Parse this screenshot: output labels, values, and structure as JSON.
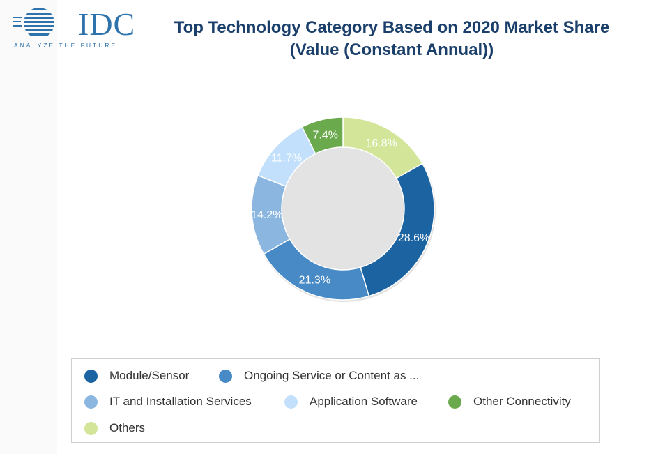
{
  "logo": {
    "text": "IDC",
    "tagline": "ANALYZE THE FUTURE"
  },
  "header": {
    "title_line1": "Top Technology Category Based on 2020 Market Share",
    "title_line2": "(Value (Constant Annual))"
  },
  "chart_data": {
    "type": "pie",
    "variant": "donut",
    "title": "Top Technology Category Based on 2020 Market Share (Value (Constant Annual))",
    "start": "top",
    "direction": "clockwise",
    "legend_position": "bottom",
    "categories": [
      "Module/Sensor",
      "Ongoing Service or Content as ...",
      "IT and Installation Services",
      "Application Software",
      "Other Connectivity",
      "Others"
    ],
    "values": [
      28.6,
      21.3,
      14.2,
      11.7,
      7.4,
      16.8
    ],
    "labels": [
      "28.6%",
      "21.3%",
      "14.2%",
      "11.7%",
      "7.4%",
      "16.8%"
    ],
    "colors": [
      "#1c63a2",
      "#478ac6",
      "#8ab6e0",
      "#c2e0fb",
      "#6aaa4d",
      "#d2e598"
    ],
    "order_clockwise_from_top": [
      "Others",
      "Module/Sensor",
      "Ongoing Service or Content as ...",
      "IT and Installation Services",
      "Application Software",
      "Other Connectivity"
    ]
  },
  "legend": {
    "items": [
      {
        "label": "Module/Sensor",
        "color": "#1c63a2"
      },
      {
        "label": "Ongoing Service or Content as ...",
        "color": "#478ac6"
      },
      {
        "label": "IT and Installation Services",
        "color": "#8ab6e0"
      },
      {
        "label": "Application Software",
        "color": "#c2e0fb"
      },
      {
        "label": "Other Connectivity",
        "color": "#6aaa4d"
      },
      {
        "label": "Others",
        "color": "#d2e598"
      }
    ]
  }
}
